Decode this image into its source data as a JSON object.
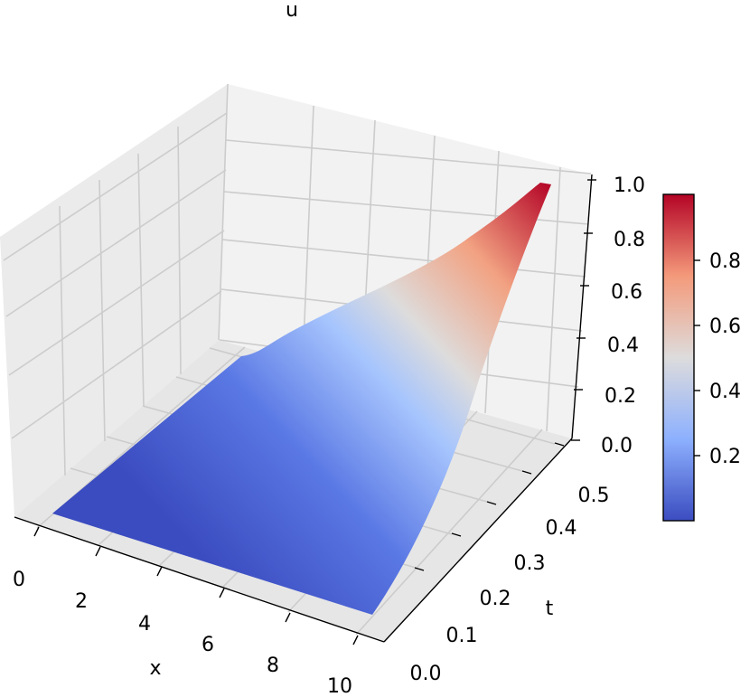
{
  "chart_data": {
    "type": "surface3d",
    "title": "u",
    "xlabel": "x",
    "ylabel": "t",
    "zlabel": "",
    "x_range": [
      0,
      10
    ],
    "t_range": [
      0,
      0.55
    ],
    "z_range": [
      0,
      1.0
    ],
    "x_ticks": [
      "0",
      "2",
      "4",
      "6",
      "8",
      "10"
    ],
    "t_ticks": [
      "0.0",
      "0.1",
      "0.2",
      "0.3",
      "0.4",
      "0.5"
    ],
    "z_ticks": [
      "0.0",
      "0.2",
      "0.4",
      "0.6",
      "0.8",
      "1.0"
    ],
    "colorbar_ticks": [
      "0.2",
      "0.4",
      "0.6",
      "0.8"
    ],
    "colorbar_range": [
      0.0,
      1.0
    ],
    "colormap": "coolwarm",
    "colormap_stops": [
      "#3b4cc0",
      "#8db0fe",
      "#dddcdc",
      "#f49a7b",
      "#b40426"
    ],
    "pane_color": "#f2f2f2",
    "grid": true,
    "surface_points": [
      {
        "x": 0,
        "t": 0.0,
        "u": 0.0
      },
      {
        "x": 10,
        "t": 0.0,
        "u": 0.0
      },
      {
        "x": 0,
        "t": 0.05,
        "u": 0.0
      },
      {
        "x": 10,
        "t": 0.25,
        "u": 0.0
      },
      {
        "x": 10,
        "t": 0.55,
        "u": 1.0
      },
      {
        "x": 0,
        "t": 0.55,
        "u": 0.3
      }
    ]
  }
}
